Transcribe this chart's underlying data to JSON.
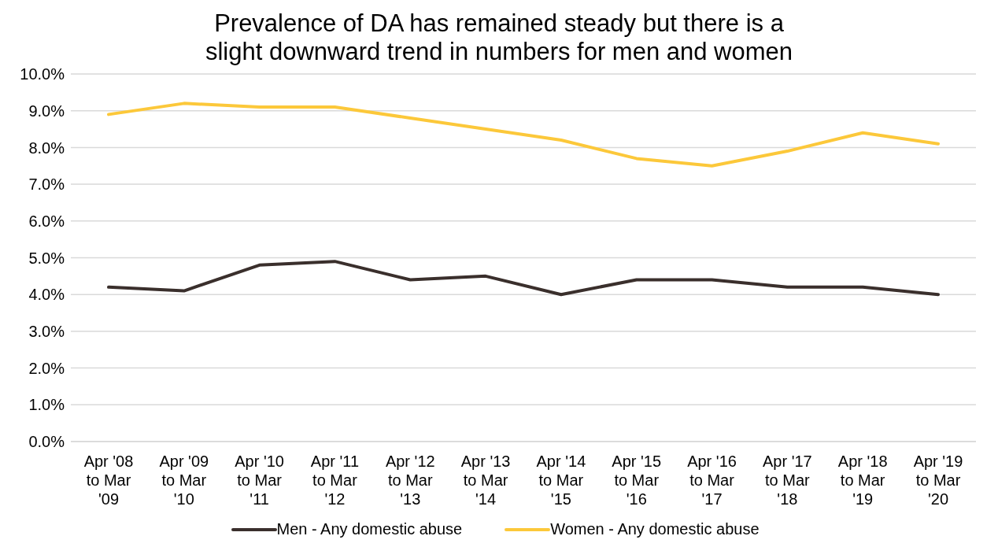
{
  "chart_data": {
    "type": "line",
    "title": "Prevalence of DA has remained steady but there is a slight downward trend in numbers for men and women",
    "categories": [
      "Apr '08 to Mar '09",
      "Apr '09 to Mar '10",
      "Apr '10 to Mar '11",
      "Apr '11 to Mar '12",
      "Apr '12 to Mar '13",
      "Apr '13 to Mar '14",
      "Apr '14 to Mar '15",
      "Apr '15 to Mar '16",
      "Apr '16 to Mar '17",
      "Apr '17 to Mar '18",
      "Apr '18 to Mar '19",
      "Apr '19 to Mar '20"
    ],
    "series": [
      {
        "name": "Men - Any domestic abuse",
        "color": "#3a2f2c",
        "values": [
          4.2,
          4.1,
          4.8,
          4.9,
          4.4,
          4.5,
          4.0,
          4.4,
          4.4,
          4.2,
          4.2,
          4.0
        ]
      },
      {
        "name": "Women - Any domestic abuse",
        "color": "#fcc83a",
        "values": [
          8.9,
          9.2,
          9.1,
          9.1,
          8.8,
          8.5,
          8.2,
          7.7,
          7.5,
          7.9,
          8.4,
          8.1
        ]
      }
    ],
    "ylim": [
      0,
      10
    ],
    "yticks": [
      {
        "value": 0,
        "label": "0.0%"
      },
      {
        "value": 1,
        "label": "1.0%"
      },
      {
        "value": 2,
        "label": "2.0%"
      },
      {
        "value": 3,
        "label": "3.0%"
      },
      {
        "value": 4,
        "label": "4.0%"
      },
      {
        "value": 5,
        "label": "5.0%"
      },
      {
        "value": 6,
        "label": "6.0%"
      },
      {
        "value": 7,
        "label": "7.0%"
      },
      {
        "value": 8,
        "label": "8.0%"
      },
      {
        "value": 9,
        "label": "9.0%"
      },
      {
        "value": 10,
        "label": "10.0%"
      }
    ],
    "grid": "y",
    "legend": "bottom",
    "marker": "none",
    "line_style": "solid"
  }
}
